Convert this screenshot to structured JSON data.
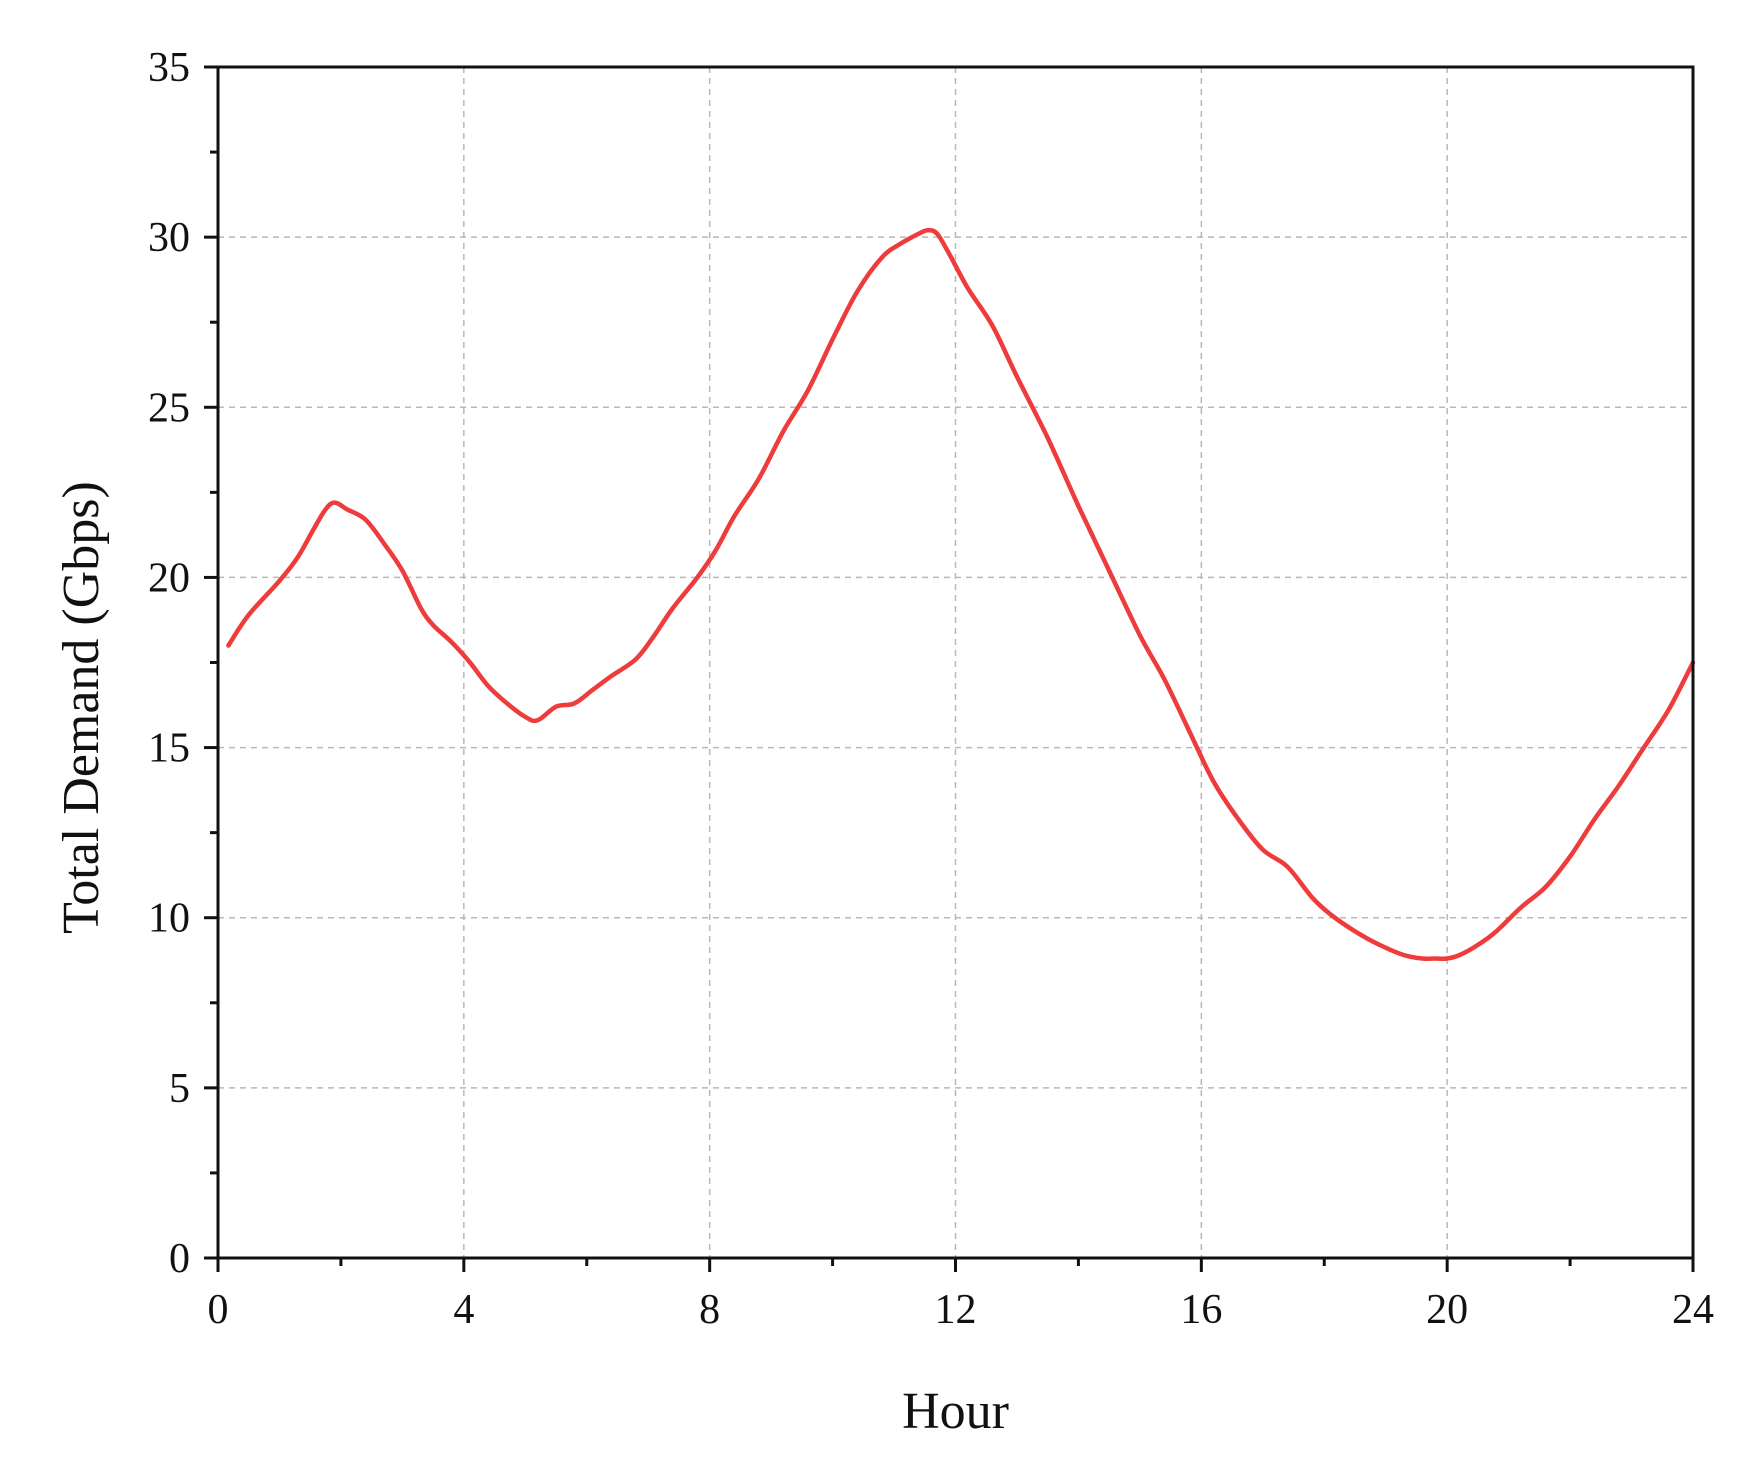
{
  "chart_data": {
    "type": "line",
    "xlabel": "Hour",
    "ylabel": "Total Demand (Gbps)",
    "xlim": [
      0,
      24
    ],
    "ylim": [
      0,
      35
    ],
    "x_ticks": [
      0,
      4,
      8,
      12,
      16,
      20,
      24
    ],
    "x_tick_labels": [
      "0",
      "4",
      "8",
      "12",
      "16",
      "20",
      "24"
    ],
    "y_ticks": [
      0,
      5,
      10,
      15,
      20,
      25,
      30,
      35
    ],
    "y_tick_labels": [
      "0",
      "5",
      "10",
      "15",
      "20",
      "25",
      "30",
      "35"
    ],
    "grid": true,
    "legend": "none",
    "series": [
      {
        "color": "#ee3b3b",
        "x": [
          0.17,
          0.5,
          1.0,
          1.3,
          1.55,
          1.75,
          1.9,
          2.1,
          2.4,
          2.7,
          3.0,
          3.3,
          3.5,
          3.8,
          4.1,
          4.4,
          4.7,
          5.0,
          5.2,
          5.5,
          5.8,
          6.1,
          6.4,
          6.8,
          7.1,
          7.4,
          7.8,
          8.1,
          8.4,
          8.8,
          9.2,
          9.6,
          10.0,
          10.4,
          10.8,
          11.1,
          11.4,
          11.55,
          11.7,
          11.9,
          12.2,
          12.6,
          13.0,
          13.5,
          14.0,
          14.5,
          15.0,
          15.4,
          15.8,
          16.2,
          16.6,
          17.0,
          17.4,
          17.8,
          18.1,
          18.5,
          18.9,
          19.3,
          19.6,
          19.8,
          20.0,
          20.2,
          20.5,
          20.8,
          21.2,
          21.6,
          22.0,
          22.4,
          22.8,
          23.2,
          23.6,
          24.0
        ],
        "y": [
          18.0,
          18.9,
          19.9,
          20.6,
          21.4,
          22.0,
          22.2,
          22.0,
          21.7,
          21.0,
          20.2,
          19.1,
          18.6,
          18.1,
          17.5,
          16.8,
          16.3,
          15.9,
          15.8,
          16.2,
          16.3,
          16.7,
          17.1,
          17.6,
          18.3,
          19.1,
          20.0,
          20.8,
          21.8,
          22.9,
          24.3,
          25.5,
          27.0,
          28.4,
          29.4,
          29.8,
          30.1,
          30.2,
          30.1,
          29.5,
          28.5,
          27.4,
          25.9,
          24.1,
          22.1,
          20.2,
          18.3,
          17.0,
          15.5,
          14.0,
          12.9,
          12.0,
          11.5,
          10.6,
          10.1,
          9.6,
          9.2,
          8.9,
          8.8,
          8.8,
          8.8,
          8.9,
          9.2,
          9.6,
          10.3,
          10.9,
          11.8,
          12.9,
          13.9,
          15.0,
          16.1,
          17.5
        ]
      }
    ]
  }
}
